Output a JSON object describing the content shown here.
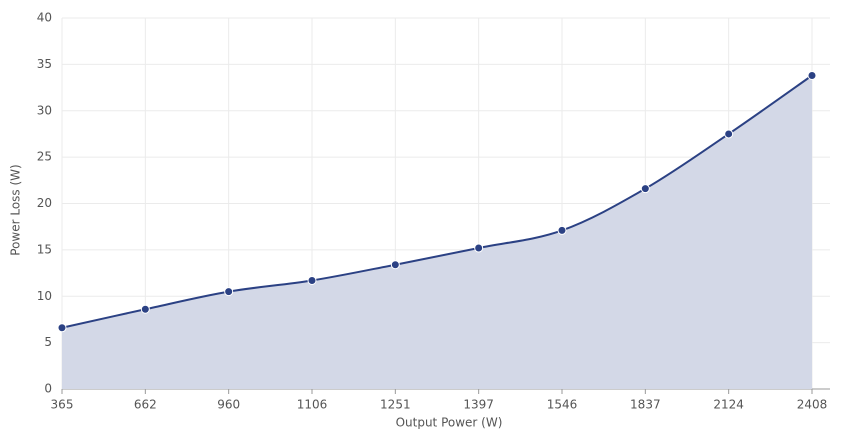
{
  "chart_data": {
    "type": "area",
    "x_label": "Output Power (W)",
    "y_label": "Power Loss (W)",
    "categories": [
      "365",
      "662",
      "960",
      "1106",
      "1251",
      "1397",
      "1546",
      "1837",
      "2124",
      "2408"
    ],
    "series": [
      {
        "name": "Power Loss",
        "color": "#2b4184",
        "fill": "#d3d8e7",
        "values": [
          6.6,
          8.6,
          10.5,
          11.7,
          13.4,
          15.2,
          17.1,
          21.6,
          27.5,
          33.8
        ]
      }
    ],
    "ylim": [
      0,
      40
    ],
    "yticks": [
      0,
      5,
      10,
      15,
      20,
      25,
      30,
      35,
      40
    ],
    "grid": true
  }
}
